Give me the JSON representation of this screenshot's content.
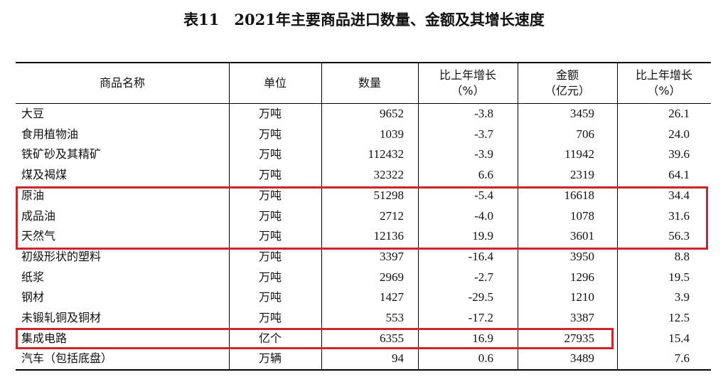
{
  "title": "表11　2021年主要商品进口数量、金额及其增长速度",
  "table": {
    "header": [
      "商品名称",
      "单位",
      "数量",
      "比上年增长\n（%）",
      "金额\n（亿元）",
      "比上年增长\n（%）"
    ],
    "rows": [
      [
        "大豆",
        "万吨",
        "9652",
        "-3.8",
        "3459",
        "26.1"
      ],
      [
        "食用植物油",
        "万吨",
        "1039",
        "-3.7",
        "706",
        "24.0"
      ],
      [
        "铁矿砂及其精矿",
        "万吨",
        "112432",
        "-3.9",
        "11942",
        "39.6"
      ],
      [
        "煤及褐煤",
        "万吨",
        "32322",
        "6.6",
        "2319",
        "64.1"
      ],
      [
        "原油",
        "万吨",
        "51298",
        "-5.4",
        "16618",
        "34.4"
      ],
      [
        "成品油",
        "万吨",
        "2712",
        "-4.0",
        "1078",
        "31.6"
      ],
      [
        "天然气",
        "万吨",
        "12136",
        "19.9",
        "3601",
        "56.3"
      ],
      [
        "初级形状的塑料",
        "万吨",
        "3397",
        "-16.4",
        "3950",
        "8.8"
      ],
      [
        "纸浆",
        "万吨",
        "2969",
        "-2.7",
        "1296",
        "19.5"
      ],
      [
        "钢材",
        "万吨",
        "1427",
        "-29.5",
        "1210",
        "3.9"
      ],
      [
        "未锻轧铜及铜材",
        "万吨",
        "553",
        "-17.2",
        "3387",
        "12.5"
      ],
      [
        "集成电路",
        "亿个",
        "6355",
        "16.9",
        "27935",
        "15.4"
      ],
      [
        "汽车（包括底盘）",
        "万辆",
        "94",
        "0.6",
        "3489",
        "7.6"
      ]
    ]
  }
}
